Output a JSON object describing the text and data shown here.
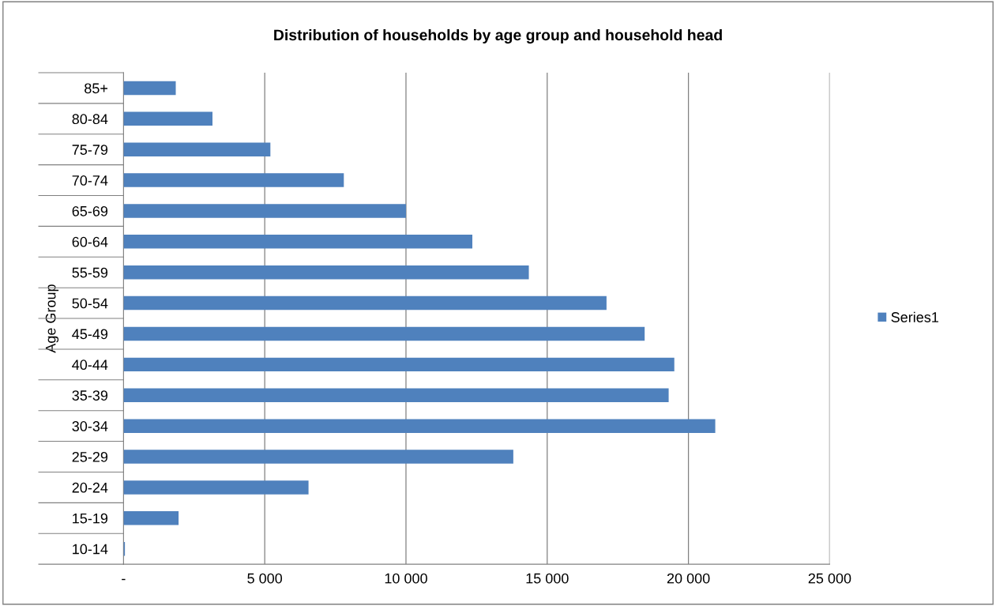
{
  "chart_data": {
    "type": "bar",
    "orientation": "horizontal",
    "title": "Distribution of households by age group and household head",
    "ylabel": "Age Group",
    "categories": [
      "85+",
      "80-84",
      "75-79",
      "70-74",
      "65-69",
      "60-64",
      "55-59",
      "50-54",
      "45-49",
      "40-44",
      "35-39",
      "30-34",
      "25-29",
      "20-24",
      "15-19",
      "10-14"
    ],
    "series": [
      {
        "name": "Series1",
        "color": "#4f81bd",
        "values": [
          1850,
          3150,
          5200,
          7800,
          10000,
          12350,
          14350,
          17100,
          18450,
          19500,
          19300,
          20950,
          13800,
          6550,
          1950,
          50
        ]
      }
    ],
    "xlim": [
      0,
      25000
    ],
    "xticks": [
      {
        "value": 0,
        "label": "-"
      },
      {
        "value": 5000,
        "label": "5 000"
      },
      {
        "value": 10000,
        "label": "10 000"
      },
      {
        "value": 15000,
        "label": "15 000"
      },
      {
        "value": 20000,
        "label": "20 000"
      },
      {
        "value": 25000,
        "label": "25 000"
      }
    ],
    "grid": "x",
    "legend": "right"
  }
}
